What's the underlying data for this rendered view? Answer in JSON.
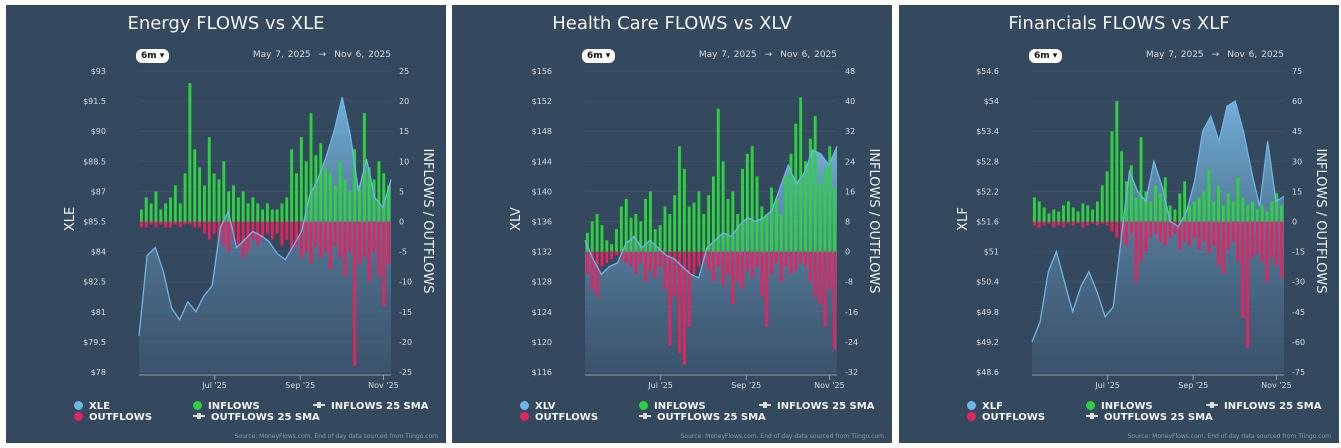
{
  "colors": {
    "panel_bg": "#34485e",
    "price": "#6fb6e6",
    "inflows": "#2ed13f",
    "outflows": "#e3245f",
    "grid": "#41546a",
    "tick_text": "#d7dde3"
  },
  "charts": [
    {
      "title": "Energy FLOWS vs XLE",
      "range_button": "6m",
      "date_start": "May 7, 2025",
      "date_arrow": "→",
      "date_end": "Nov 6, 2025",
      "left_axis_label": "XLE",
      "right_axis_label": "INFLOWS / OUTFLOWS",
      "left_ticks": [
        "$93",
        "$91.5",
        "$90",
        "$88.5",
        "$87",
        "$85.5",
        "$84",
        "$82.5",
        "$81",
        "$79.5",
        "$78"
      ],
      "right_ticks": [
        "25",
        "20",
        "15",
        "10",
        "5",
        "0",
        "-5",
        "-10",
        "-15",
        "-20",
        "-25"
      ],
      "x_ticks": [
        "Jul '25",
        "Sep '25",
        "Nov '25"
      ],
      "legend": {
        "price": "XLE",
        "outflows": "OUTFLOWS",
        "inflows": "INFLOWS",
        "outflows_sma": "OUTFLOWS 25 SMA",
        "inflows_sma": "INFLOWS 25 SMA"
      },
      "source": "Source: MoneyFlows.com. End of day data sourced from Tiingo.com",
      "chart_data": {
        "type": "bar+area",
        "price_ylim": [
          78,
          93
        ],
        "flows_ylim": [
          -25,
          25
        ],
        "grid": true,
        "price": [
          79.8,
          83.8,
          84.2,
          83.0,
          81.2,
          80.6,
          81.5,
          81.0,
          81.8,
          82.3,
          85.2,
          86.0,
          84.2,
          84.6,
          85.0,
          84.8,
          84.5,
          83.9,
          83.6,
          84.3,
          85.0,
          86.8,
          87.6,
          88.7,
          90.0,
          91.7,
          89.8,
          87.0,
          88.6,
          86.7,
          86.2,
          87.6
        ],
        "inflows": [
          2,
          4,
          3,
          5,
          2,
          3,
          4,
          6,
          3,
          8,
          23,
          12,
          9,
          6,
          14,
          8,
          7,
          10,
          5,
          6,
          4,
          5,
          3,
          4,
          3,
          2,
          3,
          2,
          2,
          3,
          4,
          12,
          8,
          14,
          10,
          18,
          11,
          13,
          9,
          8,
          6,
          10,
          7,
          5,
          12,
          6,
          18,
          9,
          7,
          10,
          8,
          6
        ],
        "outflows": [
          -1,
          -1,
          -0.5,
          -1,
          -0.5,
          -1,
          -1,
          -0.5,
          -1,
          -0.5,
          -0.5,
          -1,
          -1,
          -2,
          -3,
          -2,
          -3,
          -4,
          -5,
          -3,
          -4,
          -6,
          -5,
          -3,
          -4,
          -3,
          -2,
          -3,
          -2,
          -4,
          -3,
          -5,
          -4,
          -6,
          -5,
          -7,
          -4,
          -6,
          -5,
          -8,
          -4,
          -6,
          -9,
          -5,
          -24,
          -7,
          -6,
          -10,
          -5,
          -9,
          -14,
          -7
        ]
      }
    },
    {
      "title": "Health Care FLOWS vs XLV",
      "range_button": "6m",
      "date_start": "May 7, 2025",
      "date_arrow": "→",
      "date_end": "Nov 6, 2025",
      "left_axis_label": "XLV",
      "right_axis_label": "INFLOWS / OUTFLOWS",
      "left_ticks": [
        "$156",
        "$152",
        "$148",
        "$144",
        "$140",
        "$136",
        "$132",
        "$128",
        "$124",
        "$120",
        "$116"
      ],
      "right_ticks": [
        "48",
        "40",
        "32",
        "24",
        "16",
        "8",
        "0",
        "-8",
        "-16",
        "-24",
        "-32"
      ],
      "x_ticks": [
        "Jul '25",
        "Sep '25",
        "Nov '25"
      ],
      "legend": {
        "price": "XLV",
        "outflows": "OUTFLOWS",
        "inflows": "INFLOWS",
        "outflows_sma": "OUTFLOWS 25 SMA",
        "inflows_sma": "INFLOWS 25 SMA"
      },
      "source": "Source: MoneyFlows.com. End of day data sourced from Tiingo.com",
      "chart_data": {
        "type": "bar+area",
        "price_ylim": [
          116,
          156
        ],
        "flows_ylim": [
          -32,
          48
        ],
        "grid": true,
        "price": [
          133.5,
          131,
          129,
          130,
          130.5,
          133,
          134,
          132.5,
          133.5,
          132.5,
          131.5,
          131,
          130,
          129,
          128.5,
          132.5,
          133.5,
          134.5,
          134,
          135.5,
          136.5,
          136,
          136.5,
          137.5,
          140.5,
          143.5,
          141,
          142.5,
          145.5,
          145,
          143.5,
          146
        ],
        "inflows": [
          5,
          8,
          10,
          7,
          3,
          2,
          6,
          12,
          14,
          9,
          10,
          8,
          14,
          16,
          6,
          7,
          12,
          10,
          15,
          28,
          22,
          12,
          13,
          16,
          10,
          15,
          20,
          38,
          24,
          14,
          16,
          10,
          22,
          26,
          28,
          20,
          12,
          10,
          17,
          14,
          10,
          20,
          26,
          34,
          41,
          24,
          30,
          36,
          18,
          22,
          28,
          17
        ],
        "outflows": [
          -6,
          -10,
          -12,
          -4,
          -3,
          -2,
          -1,
          -2,
          -3,
          -4,
          -6,
          -3,
          -8,
          -5,
          -7,
          -4,
          -10,
          -25,
          -12,
          -27,
          -30,
          -20,
          -6,
          -4,
          -3,
          -5,
          -8,
          -4,
          -9,
          -6,
          -14,
          -8,
          -10,
          -5,
          -7,
          -4,
          -12,
          -20,
          -6,
          -3,
          -8,
          -4,
          -6,
          -5,
          -3,
          -4,
          -8,
          -12,
          -14,
          -20,
          -10,
          -26
        ]
      }
    },
    {
      "title": "Financials FLOWS vs XLF",
      "range_button": "6m",
      "date_start": "May 7, 2025",
      "date_arrow": "→",
      "date_end": "Nov 6, 2025",
      "left_axis_label": "XLF",
      "right_axis_label": "INFLOWS / OUTFLOWS",
      "left_ticks": [
        "$54.6",
        "$54",
        "$53.4",
        "$52.8",
        "$52.2",
        "$51.6",
        "$51",
        "$50.4",
        "$49.8",
        "$49.2",
        "$48.6"
      ],
      "right_ticks": [
        "75",
        "60",
        "45",
        "30",
        "15",
        "0",
        "-15",
        "-30",
        "-45",
        "-60",
        "-75"
      ],
      "x_ticks": [
        "Jul '25",
        "Sep '25",
        "Nov '25"
      ],
      "legend": {
        "price": "XLF",
        "outflows": "OUTFLOWS",
        "inflows": "INFLOWS",
        "outflows_sma": "OUTFLOWS 25 SMA",
        "inflows_sma": "INFLOWS 25 SMA"
      },
      "source": "Source: MoneyFlows.com. End of day data sourced from Tiingo.com",
      "chart_data": {
        "type": "bar+area",
        "price_ylim": [
          48.6,
          54.6
        ],
        "flows_ylim": [
          -75,
          75
        ],
        "grid": true,
        "price": [
          49.2,
          49.6,
          50.6,
          51.0,
          50.4,
          49.8,
          50.3,
          50.6,
          50.2,
          49.7,
          49.9,
          51.3,
          52.6,
          52.2,
          52.0,
          52.8,
          52.3,
          51.6,
          51.5,
          51.8,
          52.4,
          53.4,
          53.7,
          53.2,
          53.9,
          54.0,
          53.4,
          52.6,
          51.9,
          53.2,
          52.0,
          52.1
        ],
        "inflows": [
          12,
          10,
          7,
          4,
          6,
          5,
          8,
          10,
          7,
          5,
          9,
          8,
          6,
          10,
          18,
          25,
          45,
          60,
          35,
          20,
          28,
          12,
          42,
          15,
          10,
          18,
          14,
          22,
          8,
          6,
          14,
          20,
          8,
          10,
          12,
          15,
          26,
          10,
          18,
          8,
          14,
          10,
          22,
          12,
          8,
          10,
          6,
          8,
          5,
          10,
          14,
          8
        ],
        "outflows": [
          -2,
          -3,
          -2,
          -1,
          -3,
          -2,
          -3,
          -1,
          -2,
          -1,
          -3,
          -2,
          -1,
          -2,
          -1,
          -2,
          -5,
          -8,
          -10,
          -12,
          -6,
          -30,
          -20,
          -15,
          -8,
          -6,
          -10,
          -12,
          -8,
          -6,
          -14,
          -10,
          -12,
          -8,
          -14,
          -10,
          -16,
          -12,
          -22,
          -26,
          -14,
          -10,
          -20,
          -48,
          -63,
          -18,
          -16,
          -20,
          -30,
          -18,
          -22,
          -28
        ]
      }
    }
  ]
}
